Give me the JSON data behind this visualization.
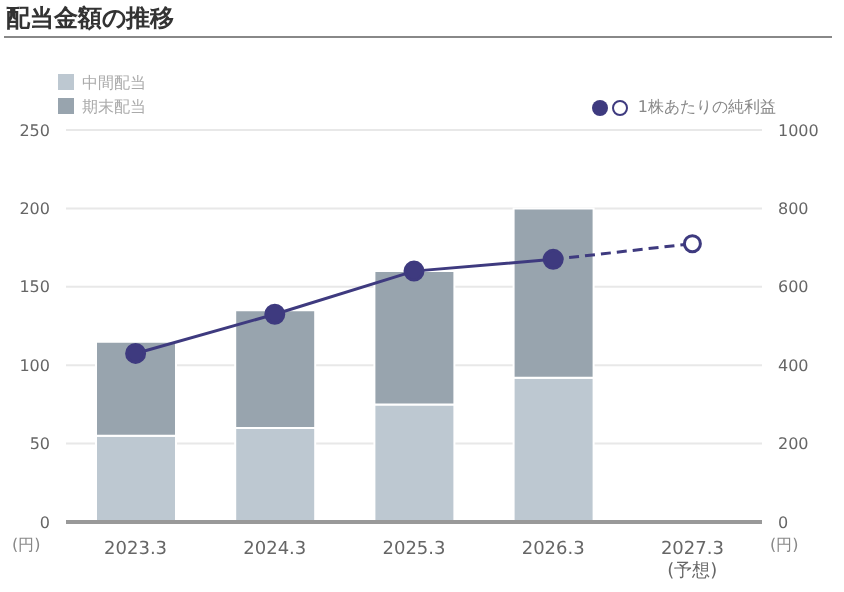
{
  "chart_data": {
    "type": "bar",
    "title": "配当金額の推移",
    "ylabel": "(円)",
    "y2label": "(円)",
    "categories": [
      "2023.3",
      "2024.3",
      "2025.3",
      "2026.3",
      "2027.3\n(予想)"
    ],
    "stacked": true,
    "grid": "y",
    "legend": "top",
    "series": [
      {
        "name": "中間配当",
        "color": "#bdc8d1",
        "values": [
          55,
          60,
          75,
          92,
          null
        ]
      },
      {
        "name": "期末配当",
        "color": "#98a4ae",
        "values": [
          60,
          75,
          85,
          108,
          null
        ]
      },
      {
        "type": "line",
        "axis": "y2",
        "color": "#3e3a7f",
        "marker": "circle",
        "line_style": "dashed",
        "values": [
          null,
          null,
          null,
          670,
          710
        ]
      },
      {
        "name": "1株あたりの純利益",
        "type": "line",
        "axis": "y2",
        "color": "#3e3a7f",
        "marker": "circle",
        "line_style": "solid",
        "values": [
          430,
          530,
          640,
          670,
          null
        ]
      }
    ],
    "ylim": [
      0,
      250
    ],
    "yticks": [
      0,
      50,
      100,
      150,
      200,
      250
    ],
    "y2lim": [
      0,
      1000
    ],
    "y2ticks": [
      0,
      200,
      400,
      600,
      800,
      1000
    ]
  }
}
